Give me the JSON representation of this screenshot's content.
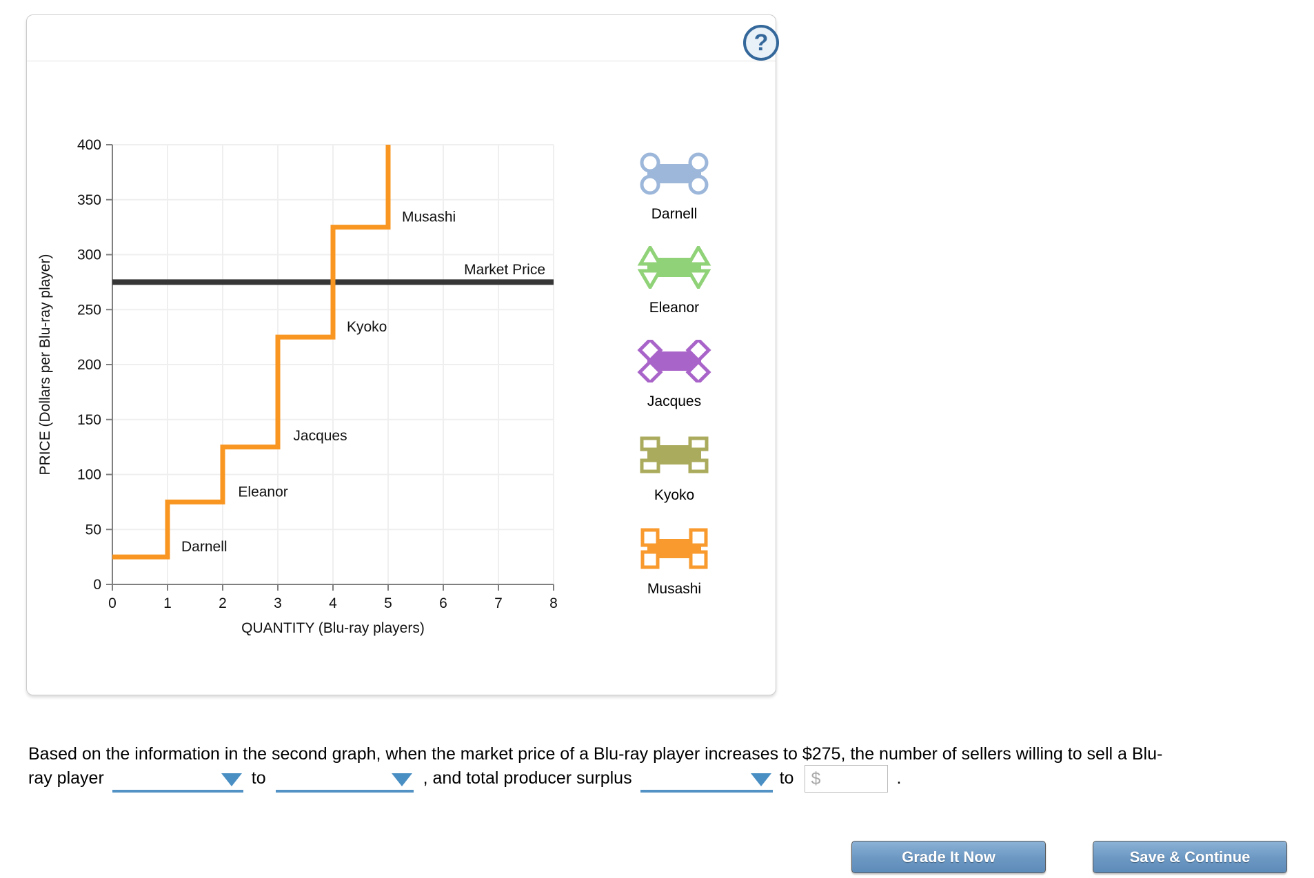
{
  "panel": {
    "help_icon_glyph": "?"
  },
  "chart_data": {
    "type": "line",
    "subtype": "step-supply",
    "xlabel": "QUANTITY (Blu-ray players)",
    "ylabel": "PRICE (Dollars per Blu-ray player)",
    "xlim": [
      0,
      8
    ],
    "ylim": [
      0,
      400
    ],
    "xticks": [
      0,
      1,
      2,
      3,
      4,
      5,
      6,
      7,
      8
    ],
    "yticks": [
      0,
      50,
      100,
      150,
      200,
      250,
      300,
      350,
      400
    ],
    "grid": true,
    "supply_steps": [
      {
        "seller": "Darnell",
        "price": 25,
        "from_q": 0,
        "to_q": 1
      },
      {
        "seller": "Eleanor",
        "price": 75,
        "from_q": 1,
        "to_q": 2
      },
      {
        "seller": "Jacques",
        "price": 125,
        "from_q": 2,
        "to_q": 3
      },
      {
        "seller": "Kyoko",
        "price": 225,
        "from_q": 3,
        "to_q": 4
      },
      {
        "seller": "Musashi",
        "price": 325,
        "from_q": 4,
        "to_q": 5
      }
    ],
    "curve_top_price": 400,
    "market_price": 275,
    "curve_color": "#F89621",
    "market_line_color": "#363636",
    "axis_color": "#7f7f7f",
    "grid_color": "#efefef",
    "point_labels": [
      {
        "text": "Darnell",
        "x": 1.25,
        "y": 30,
        "anchor": "start"
      },
      {
        "text": "Eleanor",
        "x": 2.28,
        "y": 80,
        "anchor": "start"
      },
      {
        "text": "Jacques",
        "x": 3.28,
        "y": 131,
        "anchor": "start"
      },
      {
        "text": "Kyoko",
        "x": 4.25,
        "y": 230,
        "anchor": "start"
      },
      {
        "text": "Musashi",
        "x": 5.25,
        "y": 330,
        "anchor": "start"
      },
      {
        "text": "Market Price",
        "x": 7.85,
        "y": 282,
        "anchor": "end"
      }
    ]
  },
  "legend": {
    "items": [
      {
        "name": "Darnell",
        "handle": "circle",
        "color": "#9CB7DA"
      },
      {
        "name": "Eleanor",
        "handle": "triangle",
        "color": "#90D277"
      },
      {
        "name": "Jacques",
        "handle": "diamond",
        "color": "#A964C9"
      },
      {
        "name": "Kyoko",
        "handle": "bracket",
        "color": "#ABAB5E"
      },
      {
        "name": "Musashi",
        "handle": "square",
        "color": "#F89A2D"
      }
    ]
  },
  "question": {
    "line1": "Based on the information in the second graph, when the market price of a Blu-ray player increases to $275, the number of sellers willing to sell a Blu-",
    "line2": {
      "seg1": "ray player",
      "seg2": "to",
      "seg3": ", and total producer surplus",
      "seg4": "to",
      "seg5": "."
    },
    "dropdown1": {
      "selected_value": ""
    },
    "dropdown2": {
      "selected_value": ""
    },
    "dropdown3": {
      "selected_value": ""
    },
    "currency_input": {
      "prefix": "$",
      "value": ""
    }
  },
  "footer": {
    "grade_button": "Grade It Now",
    "save_button": "Save & Continue"
  }
}
